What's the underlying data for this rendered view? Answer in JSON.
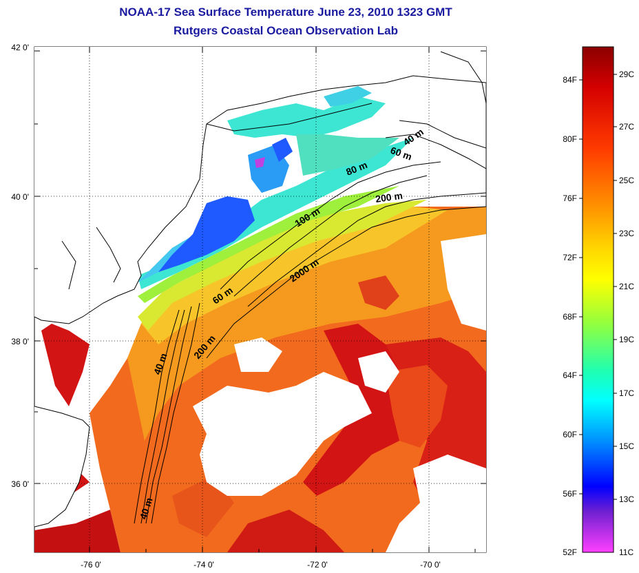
{
  "header": {
    "title_line1": "NOAA-17 Sea Surface Temperature June 23, 2010 1323 GMT",
    "title_line2": "Rutgers Coastal Ocean Observation Lab"
  },
  "map": {
    "lat_labels": [
      "42 0'",
      "40 0'",
      "38 0'",
      "36 0'"
    ],
    "lon_labels": [
      "-76 0'",
      "-74 0'",
      "-72 0'",
      "-70 0'"
    ],
    "isobath_labels": [
      "40 m",
      "60 m",
      "80 m",
      "200 m",
      "100 m",
      "2000 m",
      "60 m",
      "200 m",
      "40 m",
      "40 m"
    ],
    "palette": {
      "cold_blue": "#1e5aff",
      "cyan": "#3ce6d2",
      "green": "#9ff03c",
      "yellow": "#f5dc1e",
      "orange": "#f58c14",
      "red_orange": "#f0501e",
      "red": "#d21414",
      "dark_red": "#aa0a14",
      "purple": "#8a2be2"
    }
  },
  "colorbar": {
    "fahrenheit_labels": [
      "84F",
      "80F",
      "76F",
      "72F",
      "68F",
      "64F",
      "60F",
      "56F",
      "52F"
    ],
    "celsius_labels": [
      "29C",
      "27C",
      "25C",
      "23C",
      "21C",
      "19C",
      "17C",
      "15C",
      "13C",
      "11C"
    ],
    "stops": [
      "#8b0000",
      "#ff0000",
      "#ff7a00",
      "#ffd700",
      "#ffff00",
      "#80ff40",
      "#00ffff",
      "#0080ff",
      "#0000ff",
      "#8020c0",
      "#ff40ff"
    ]
  }
}
